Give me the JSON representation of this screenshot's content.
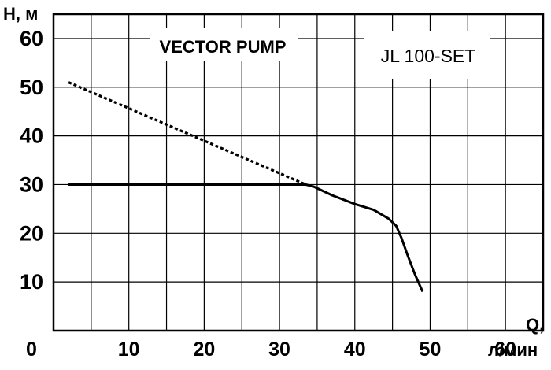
{
  "chart_data": {
    "type": "line",
    "brand_label": "VECTOR PUMP",
    "model_label": "JL 100-SET",
    "ylabel": "H, м",
    "xlabel": "Q,",
    "xlabel_unit": "л/мин",
    "xlim": [
      0,
      65
    ],
    "ylim": [
      0,
      65
    ],
    "x_ticks": [
      0,
      10,
      20,
      30,
      40,
      50,
      60
    ],
    "y_ticks": [
      10,
      20,
      30,
      40,
      50,
      60
    ],
    "x_tick_labels": [
      "0",
      "10",
      "20",
      "30",
      "40",
      "50",
      "60"
    ],
    "y_tick_labels": [
      "10",
      "20",
      "30",
      "40",
      "50",
      "60"
    ],
    "grid": true,
    "legend": "none",
    "series": [
      {
        "style": "solid",
        "color": "#000000",
        "x": [
          2,
          33.5,
          34.5,
          37,
          40,
          42.5,
          44.5,
          45.5,
          46.2,
          47,
          48,
          49
        ],
        "y": [
          30,
          30,
          29.6,
          27.8,
          26,
          24.8,
          23,
          21.5,
          19,
          15.5,
          11.5,
          8
        ]
      },
      {
        "style": "dotted",
        "color": "#000000",
        "x": [
          2,
          33.5
        ],
        "y": [
          51,
          30
        ]
      }
    ]
  }
}
